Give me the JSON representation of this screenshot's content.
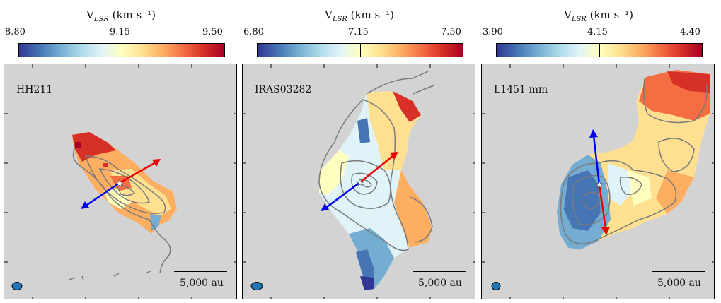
{
  "colorbar": {
    "label": "V",
    "label_sub": "LSR",
    "label_units": " (km s⁻¹)"
  },
  "panels": [
    {
      "name": "HH211",
      "vmin": "8.80",
      "vmid": "9.15",
      "vmax": "9.50",
      "scale_label": "5,000 au"
    },
    {
      "name": "IRAS03282",
      "vmin": "6.80",
      "vmid": "7.15",
      "vmax": "7.50",
      "scale_label": "5,000 au"
    },
    {
      "name": "L1451-mm",
      "vmin": "3.90",
      "vmid": "4.15",
      "vmax": "4.40",
      "scale_label": "5,000 au"
    }
  ],
  "colors": {
    "background": "#d3d3d3",
    "contour": "#7a7a7a",
    "blue_arrow": "#0000ee",
    "red_arrow": "#ee0000",
    "beam": "#1f77b4",
    "colormap": [
      "#313695",
      "#4575b4",
      "#74add1",
      "#abd9e9",
      "#e0f3f8",
      "#ffffbf",
      "#fee090",
      "#fdae61",
      "#f46d43",
      "#d73027",
      "#a50026"
    ]
  },
  "chart_data": [
    {
      "type": "heatmap",
      "title": "HH211",
      "colorbar_label": "V_LSR (km s^-1)",
      "colorbar_range": [
        8.8,
        9.5
      ],
      "colorbar_ticks": [
        8.8,
        9.15,
        9.5
      ],
      "scale_bar": "5,000 au",
      "outflow_arrows": [
        "blue",
        "red"
      ]
    },
    {
      "type": "heatmap",
      "title": "IRAS03282",
      "colorbar_label": "V_LSR (km s^-1)",
      "colorbar_range": [
        6.8,
        7.5
      ],
      "colorbar_ticks": [
        6.8,
        7.15,
        7.5
      ],
      "scale_bar": "5,000 au",
      "outflow_arrows": [
        "blue",
        "red"
      ]
    },
    {
      "type": "heatmap",
      "title": "L1451-mm",
      "colorbar_label": "V_LSR (km s^-1)",
      "colorbar_range": [
        3.9,
        4.4
      ],
      "colorbar_ticks": [
        3.9,
        4.15,
        4.4
      ],
      "scale_bar": "5,000 au",
      "outflow_arrows": [
        "blue",
        "red"
      ]
    }
  ]
}
